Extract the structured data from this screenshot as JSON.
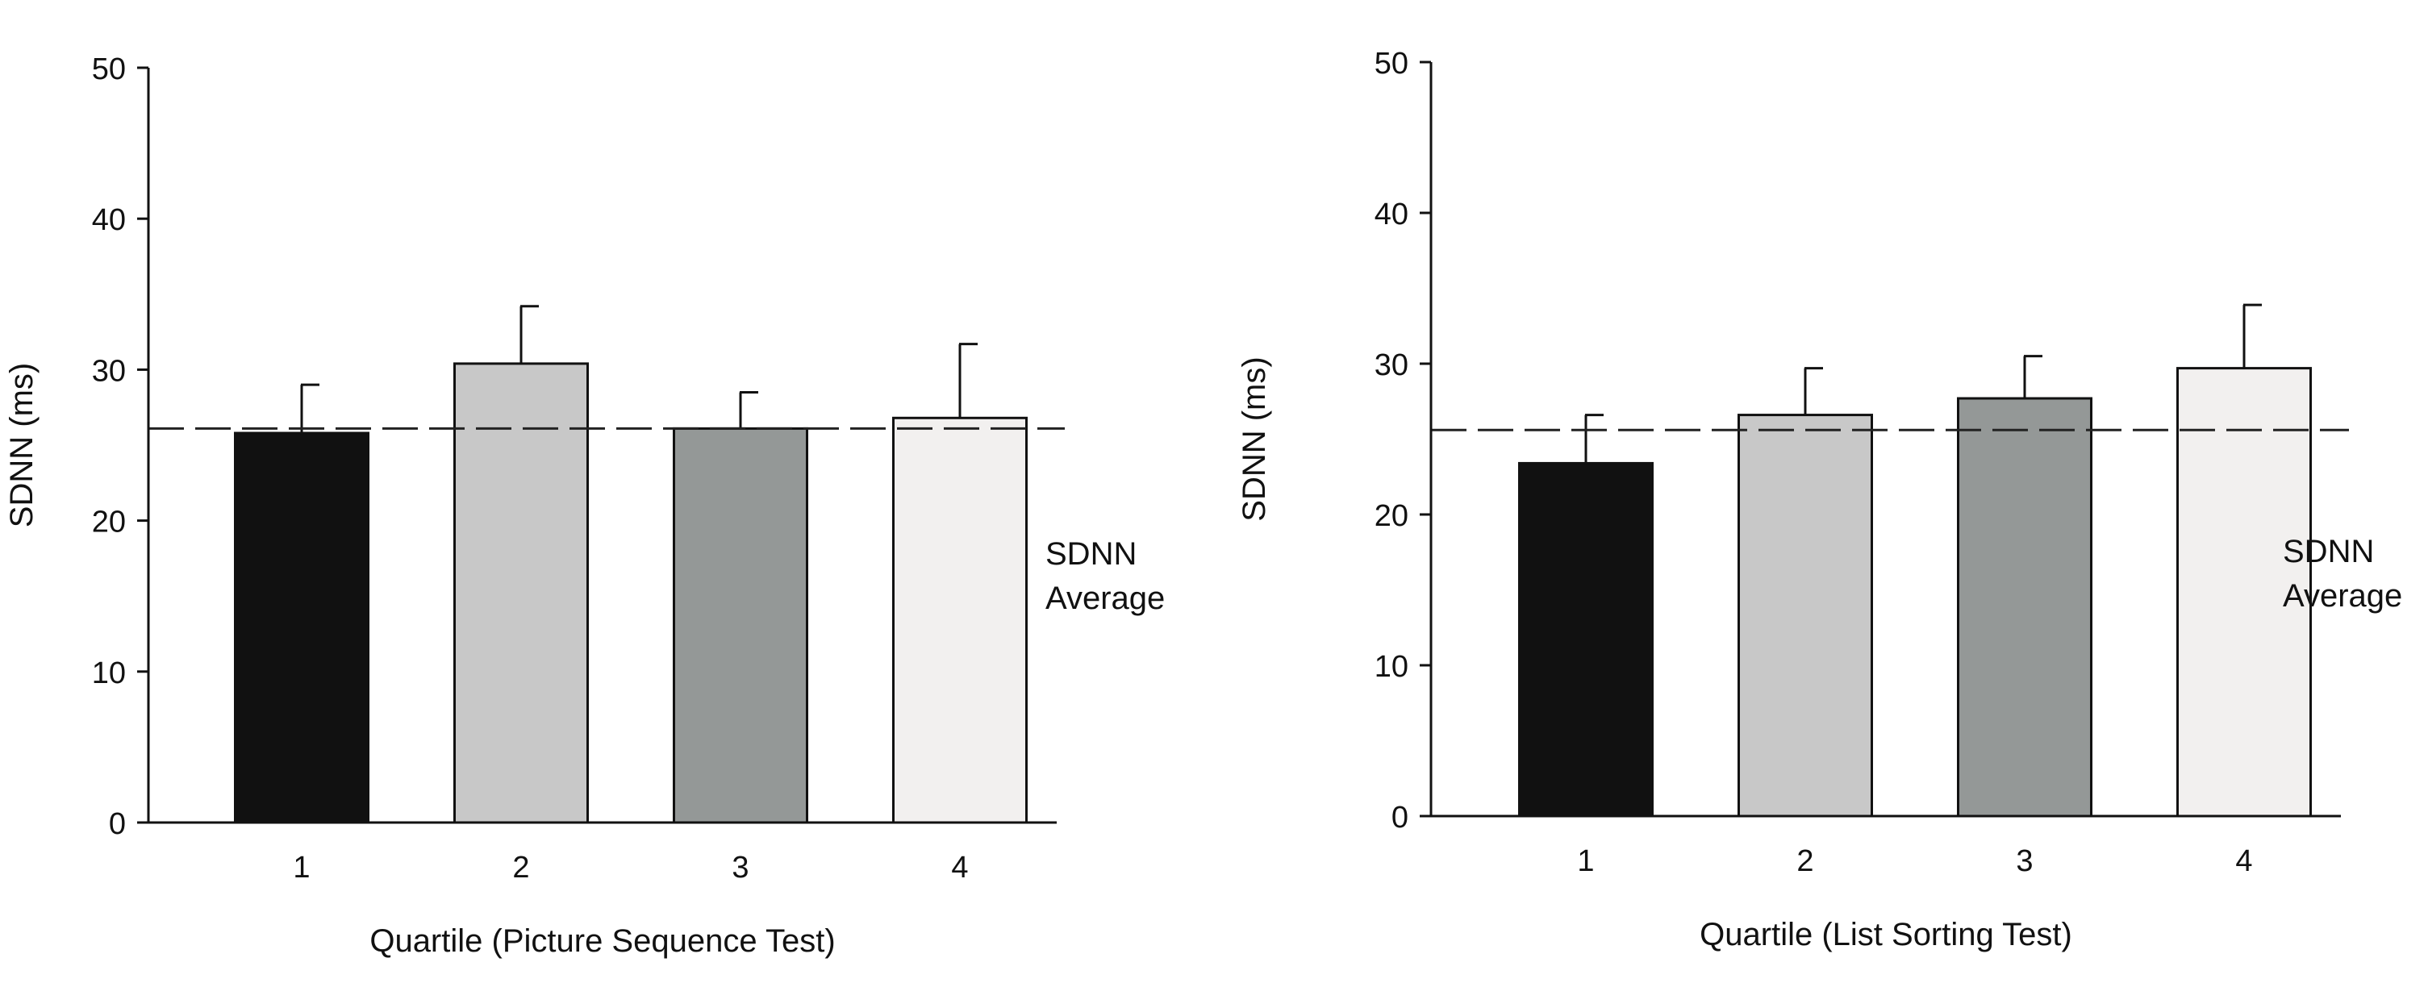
{
  "chart_data": [
    {
      "type": "bar",
      "categories": [
        "1",
        "2",
        "3",
        "4"
      ],
      "values": [
        25.8,
        30.4,
        26.1,
        26.8
      ],
      "error_upper": [
        29.0,
        34.2,
        28.5,
        31.7
      ],
      "bar_colors": [
        "#111111",
        "#c8c8c8",
        "#949897",
        "#f2f0ef"
      ],
      "reference_line": {
        "value": 26.1,
        "style": "dashed",
        "label_lines": [
          "SDNN",
          "Average"
        ]
      },
      "xlabel": "Quartile (Picture Sequence Test)",
      "ylabel": "SDNN (ms)",
      "ylim": [
        0,
        50
      ],
      "yticks": [
        0,
        10,
        20,
        30,
        40,
        50
      ],
      "grid": false
    },
    {
      "type": "bar",
      "categories": [
        "1",
        "2",
        "3",
        "4"
      ],
      "values": [
        23.4,
        26.6,
        27.7,
        29.7
      ],
      "error_upper": [
        26.6,
        29.7,
        30.5,
        33.9
      ],
      "bar_colors": [
        "#111111",
        "#c8c8c8",
        "#949897",
        "#f2f0ef"
      ],
      "reference_line": {
        "value": 25.6,
        "style": "dashed",
        "label_lines": [
          "SDNN",
          "Average"
        ]
      },
      "xlabel": "Quartile (List Sorting Test)",
      "ylabel": "SDNN (ms)",
      "ylim": [
        0,
        50
      ],
      "yticks": [
        0,
        10,
        20,
        30,
        40,
        50
      ],
      "grid": false
    }
  ]
}
